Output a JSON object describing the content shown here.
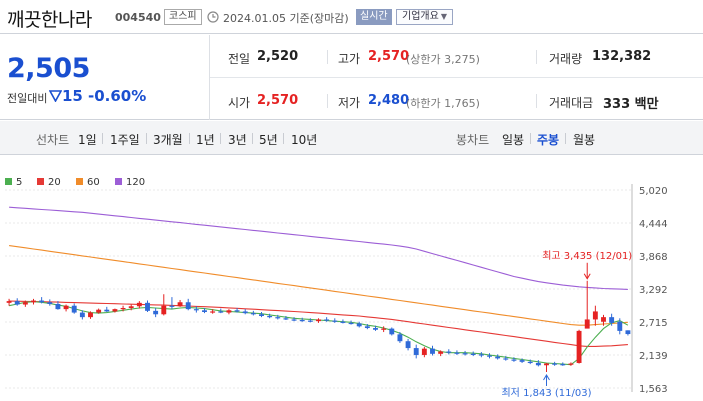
{
  "header": {
    "name": "깨끗한나라",
    "code": "004540",
    "market": "코스피",
    "date": "2024.01.05 기준(장마감)",
    "realtime": "실시간",
    "overview": "기업개요"
  },
  "summary": {
    "price": "2,505",
    "change_label": "전일대비",
    "change": "15",
    "change_pct": "-0.60%",
    "prev_label": "전일",
    "prev": "2,520",
    "open_label": "시가",
    "open": "2,570",
    "high_label": "고가",
    "high": "2,570",
    "upper_limit": "(상한가 3,275)",
    "low_label": "저가",
    "low": "2,480",
    "lower_limit": "(하한가 1,765)",
    "volume_label": "거래량",
    "volume": "132,382",
    "amount_label": "거래대금",
    "amount": "333 백만"
  },
  "periods": {
    "line_label": "선차트",
    "line_items": [
      "1일",
      "1주일",
      "3개월",
      "1년",
      "3년",
      "5년",
      "10년"
    ],
    "candle_label": "봉차트",
    "candle_items": [
      "일봉",
      "주봉",
      "월봉"
    ],
    "candle_active": "주봉"
  },
  "colors": {
    "up": "#e52222",
    "down": "#2f6ad8",
    "ma5": "#4caf50",
    "ma20": "#e53935",
    "ma60": "#f08c2a",
    "ma120": "#9c5ed6"
  },
  "chart_data": {
    "type": "candlestick",
    "legend": [
      {
        "name": "5",
        "color": "#4caf50"
      },
      {
        "name": "20",
        "color": "#e53935"
      },
      {
        "name": "60",
        "color": "#f08c2a"
      },
      {
        "name": "120",
        "color": "#9c5ed6"
      }
    ],
    "y_ticks": [
      "5,020",
      "4,444",
      "3,868",
      "3,292",
      "2,715",
      "2,139",
      "1,563"
    ],
    "y_tick_values": [
      5020,
      4444,
      3868,
      3292,
      2715,
      2139,
      1563
    ],
    "ylim": [
      1563,
      5020
    ],
    "candles": [
      [
        3050,
        3120,
        3000,
        3080
      ],
      [
        3080,
        3130,
        3000,
        3020
      ],
      [
        3020,
        3090,
        2980,
        3060
      ],
      [
        3060,
        3120,
        3020,
        3090
      ],
      [
        3090,
        3150,
        3040,
        3060
      ],
      [
        3060,
        3110,
        3000,
        3030
      ],
      [
        3030,
        3080,
        2930,
        2940
      ],
      [
        2940,
        3020,
        2900,
        3000
      ],
      [
        3000,
        3040,
        2860,
        2880
      ],
      [
        2880,
        2920,
        2760,
        2800
      ],
      [
        2800,
        2900,
        2770,
        2880
      ],
      [
        2880,
        2950,
        2860,
        2930
      ],
      [
        2930,
        2980,
        2890,
        2900
      ],
      [
        2900,
        2950,
        2880,
        2940
      ],
      [
        2940,
        3000,
        2900,
        2960
      ],
      [
        2960,
        3020,
        2920,
        2990
      ],
      [
        2990,
        3080,
        2950,
        3050
      ],
      [
        3050,
        3090,
        2890,
        2910
      ],
      [
        2910,
        2960,
        2800,
        2850
      ],
      [
        2850,
        3200,
        2830,
        3000
      ],
      [
        3000,
        3150,
        2940,
        2990
      ],
      [
        2990,
        3100,
        2980,
        3060
      ],
      [
        3060,
        3120,
        2920,
        2940
      ],
      [
        2940,
        2990,
        2880,
        2920
      ],
      [
        2920,
        2960,
        2870,
        2890
      ],
      [
        2890,
        2940,
        2860,
        2900
      ],
      [
        2900,
        2950,
        2870,
        2880
      ],
      [
        2880,
        2940,
        2850,
        2920
      ],
      [
        2920,
        2960,
        2880,
        2900
      ],
      [
        2900,
        2940,
        2850,
        2870
      ],
      [
        2870,
        2910,
        2830,
        2850
      ],
      [
        2850,
        2890,
        2800,
        2820
      ],
      [
        2820,
        2860,
        2780,
        2800
      ],
      [
        2800,
        2840,
        2760,
        2780
      ],
      [
        2780,
        2820,
        2750,
        2760
      ],
      [
        2760,
        2800,
        2730,
        2750
      ],
      [
        2750,
        2790,
        2720,
        2740
      ],
      [
        2740,
        2780,
        2710,
        2730
      ],
      [
        2730,
        2780,
        2700,
        2760
      ],
      [
        2760,
        2800,
        2720,
        2740
      ],
      [
        2740,
        2780,
        2700,
        2720
      ],
      [
        2720,
        2760,
        2690,
        2700
      ],
      [
        2700,
        2740,
        2670,
        2690
      ],
      [
        2690,
        2720,
        2620,
        2640
      ],
      [
        2640,
        2680,
        2590,
        2610
      ],
      [
        2610,
        2650,
        2560,
        2580
      ],
      [
        2580,
        2640,
        2540,
        2600
      ],
      [
        2600,
        2620,
        2480,
        2500
      ],
      [
        2500,
        2540,
        2350,
        2380
      ],
      [
        2380,
        2420,
        2220,
        2260
      ],
      [
        2260,
        2320,
        2080,
        2140
      ],
      [
        2140,
        2280,
        2100,
        2250
      ],
      [
        2250,
        2300,
        2130,
        2160
      ],
      [
        2160,
        2220,
        2120,
        2200
      ],
      [
        2200,
        2240,
        2150,
        2180
      ],
      [
        2180,
        2220,
        2140,
        2170
      ],
      [
        2170,
        2210,
        2130,
        2160
      ],
      [
        2160,
        2200,
        2120,
        2150
      ],
      [
        2150,
        2190,
        2100,
        2130
      ],
      [
        2130,
        2170,
        2080,
        2110
      ],
      [
        2110,
        2150,
        2060,
        2080
      ],
      [
        2080,
        2120,
        2040,
        2060
      ],
      [
        2060,
        2100,
        2020,
        2050
      ],
      [
        2050,
        2080,
        2000,
        2020
      ],
      [
        2020,
        2060,
        1980,
        2000
      ],
      [
        2000,
        2050,
        1940,
        1960
      ],
      [
        1960,
        2000,
        1843,
        1990
      ],
      [
        1990,
        2020,
        1950,
        1980
      ],
      [
        1980,
        2010,
        1950,
        1970
      ],
      [
        1970,
        2010,
        1950,
        1990
      ],
      [
        2000,
        2580,
        1990,
        2560
      ],
      [
        2600,
        3435,
        2620,
        2760
      ],
      [
        2760,
        3000,
        2650,
        2900
      ],
      [
        2720,
        2840,
        2650,
        2800
      ],
      [
        2800,
        2860,
        2650,
        2700
      ],
      [
        2720,
        2780,
        2500,
        2560
      ],
      [
        2570,
        2570,
        2480,
        2505
      ]
    ],
    "ma": {
      "ma5": [
        3000,
        3030,
        3060,
        3070,
        3060,
        3040,
        3010,
        2990,
        2950,
        2910,
        2880,
        2870,
        2880,
        2900,
        2920,
        2940,
        2960,
        2970,
        2960,
        2950,
        2940,
        2960,
        2970,
        2960,
        2950,
        2930,
        2910,
        2900,
        2890,
        2880,
        2870,
        2860,
        2840,
        2820,
        2800,
        2780,
        2770,
        2760,
        2750,
        2740,
        2730,
        2720,
        2710,
        2690,
        2660,
        2640,
        2610,
        2570,
        2520,
        2450,
        2370,
        2300,
        2240,
        2200,
        2180,
        2180,
        2180,
        2170,
        2160,
        2140,
        2120,
        2100,
        2080,
        2060,
        2040,
        2020,
        2000,
        1990,
        1980,
        1970,
        2080,
        2280,
        2450,
        2600,
        2700,
        2740,
        2660
      ],
      "ma20": [
        3080,
        3078,
        3075,
        3072,
        3070,
        3066,
        3062,
        3058,
        3054,
        3050,
        3046,
        3042,
        3038,
        3034,
        3030,
        3026,
        3022,
        3018,
        3014,
        3010,
        3006,
        3000,
        2994,
        2988,
        2982,
        2976,
        2970,
        2962,
        2954,
        2946,
        2938,
        2930,
        2922,
        2914,
        2906,
        2898,
        2890,
        2880,
        2870,
        2860,
        2850,
        2840,
        2830,
        2820,
        2805,
        2790,
        2775,
        2760,
        2740,
        2720,
        2700,
        2680,
        2660,
        2640,
        2620,
        2600,
        2580,
        2560,
        2540,
        2520,
        2500,
        2480,
        2460,
        2440,
        2420,
        2400,
        2380,
        2360,
        2340,
        2320,
        2300,
        2290,
        2290,
        2295,
        2300,
        2310,
        2320
      ],
      "ma60": [
        4050,
        4030,
        4010,
        3990,
        3970,
        3950,
        3930,
        3910,
        3890,
        3870,
        3850,
        3830,
        3810,
        3790,
        3770,
        3750,
        3730,
        3710,
        3690,
        3670,
        3650,
        3630,
        3610,
        3590,
        3570,
        3550,
        3530,
        3510,
        3490,
        3470,
        3450,
        3430,
        3410,
        3390,
        3370,
        3350,
        3330,
        3310,
        3290,
        3270,
        3250,
        3230,
        3210,
        3190,
        3170,
        3150,
        3130,
        3110,
        3090,
        3070,
        3050,
        3030,
        3010,
        2990,
        2970,
        2950,
        2930,
        2910,
        2890,
        2870,
        2850,
        2830,
        2810,
        2790,
        2770,
        2750,
        2730,
        2710,
        2690,
        2670,
        2660,
        2660,
        2670,
        2680,
        2690,
        2700,
        2710
      ],
      "ma120": [
        4720,
        4710,
        4700,
        4690,
        4680,
        4670,
        4660,
        4650,
        4640,
        4630,
        4615,
        4600,
        4585,
        4570,
        4555,
        4540,
        4525,
        4510,
        4495,
        4480,
        4465,
        4450,
        4435,
        4420,
        4405,
        4390,
        4375,
        4360,
        4345,
        4330,
        4315,
        4300,
        4285,
        4270,
        4255,
        4240,
        4225,
        4210,
        4195,
        4180,
        4165,
        4150,
        4135,
        4120,
        4105,
        4090,
        4075,
        4060,
        4040,
        4020,
        3990,
        3950,
        3910,
        3870,
        3830,
        3790,
        3750,
        3710,
        3670,
        3630,
        3590,
        3550,
        3510,
        3480,
        3450,
        3420,
        3400,
        3380,
        3360,
        3345,
        3330,
        3320,
        3310,
        3300,
        3295,
        3290,
        3285
      ]
    },
    "annotations": {
      "high": {
        "label": "최고 3,435 (12/01)",
        "index": 71,
        "value": 3435
      },
      "low": {
        "label": "최저 1,843 (11/03)",
        "index": 66,
        "value": 1843
      }
    }
  }
}
